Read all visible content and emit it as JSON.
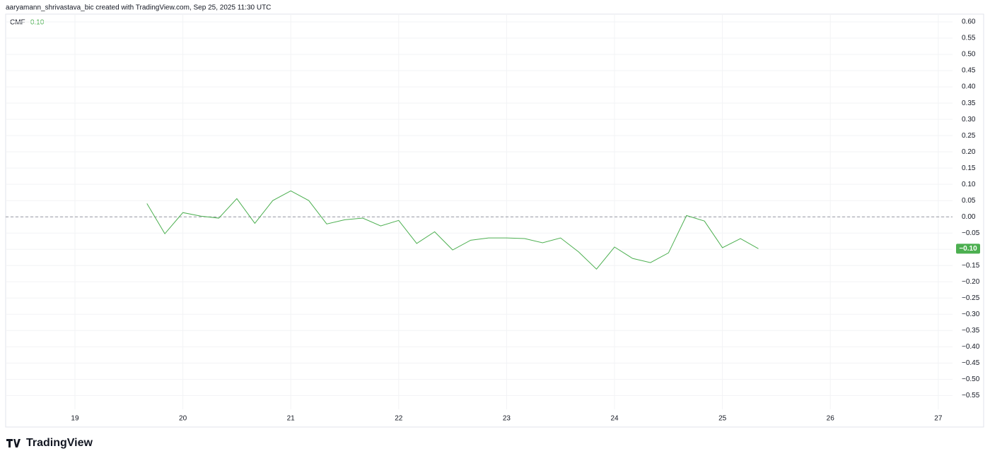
{
  "attribution": "aaryamann_shrivastava_bic created with TradingView.com, Sep 25, 2025 11:30 UTC",
  "brand": "TradingView",
  "chart_data": {
    "type": "line",
    "series": [
      {
        "name": "CMF",
        "color": "#4caf50",
        "values": [
          0.041,
          -0.052,
          0.013,
          0.002,
          -0.004,
          0.056,
          -0.02,
          0.05,
          0.08,
          0.05,
          -0.022,
          -0.009,
          -0.004,
          -0.028,
          -0.011,
          -0.082,
          -0.046,
          -0.102,
          -0.072,
          -0.065,
          -0.065,
          -0.067,
          -0.08,
          -0.065,
          -0.108,
          -0.161,
          -0.093,
          -0.128,
          -0.141,
          -0.111,
          0.004,
          -0.013,
          -0.095,
          -0.067,
          -0.098
        ],
        "last_label": "−0.10"
      }
    ],
    "x": [
      19.667,
      19.833,
      20,
      20.167,
      20.333,
      20.5,
      20.667,
      20.833,
      21,
      21.167,
      21.333,
      21.5,
      21.667,
      21.833,
      22,
      22.167,
      22.333,
      22.5,
      22.667,
      22.833,
      23,
      23.167,
      23.333,
      23.5,
      23.667,
      23.833,
      24,
      24.167,
      24.333,
      24.5,
      24.667,
      24.833,
      25,
      25.167,
      25.333
    ],
    "xlim": [
      18.358,
      27.132
    ],
    "xticks": [
      19,
      20,
      21,
      22,
      23,
      24,
      25,
      26,
      27
    ],
    "ylim": [
      -0.647,
      0.624
    ],
    "yticks": [
      {
        "value": 0.6,
        "label": "0.60"
      },
      {
        "value": 0.55,
        "label": "0.55"
      },
      {
        "value": 0.5,
        "label": "0.50"
      },
      {
        "value": 0.45,
        "label": "0.45"
      },
      {
        "value": 0.4,
        "label": "0.40"
      },
      {
        "value": 0.35,
        "label": "0.35"
      },
      {
        "value": 0.3,
        "label": "0.30"
      },
      {
        "value": 0.25,
        "label": "0.25"
      },
      {
        "value": 0.2,
        "label": "0.20"
      },
      {
        "value": 0.15,
        "label": "0.15"
      },
      {
        "value": 0.1,
        "label": "0.10"
      },
      {
        "value": 0.05,
        "label": "0.05"
      },
      {
        "value": 0,
        "label": "0.00"
      },
      {
        "value": -0.05,
        "label": "−0.05"
      },
      {
        "value": -0.1,
        "label": "−0.10"
      },
      {
        "value": -0.15,
        "label": "−0.15"
      },
      {
        "value": -0.2,
        "label": "−0.20"
      },
      {
        "value": -0.25,
        "label": "−0.25"
      },
      {
        "value": -0.3,
        "label": "−0.30"
      },
      {
        "value": -0.35,
        "label": "−0.35"
      },
      {
        "value": -0.4,
        "label": "−0.40"
      },
      {
        "value": -0.45,
        "label": "−0.45"
      },
      {
        "value": -0.5,
        "label": "−0.50"
      },
      {
        "value": -0.55,
        "label": "−0.55"
      }
    ],
    "baseline": 0,
    "grid": true
  }
}
